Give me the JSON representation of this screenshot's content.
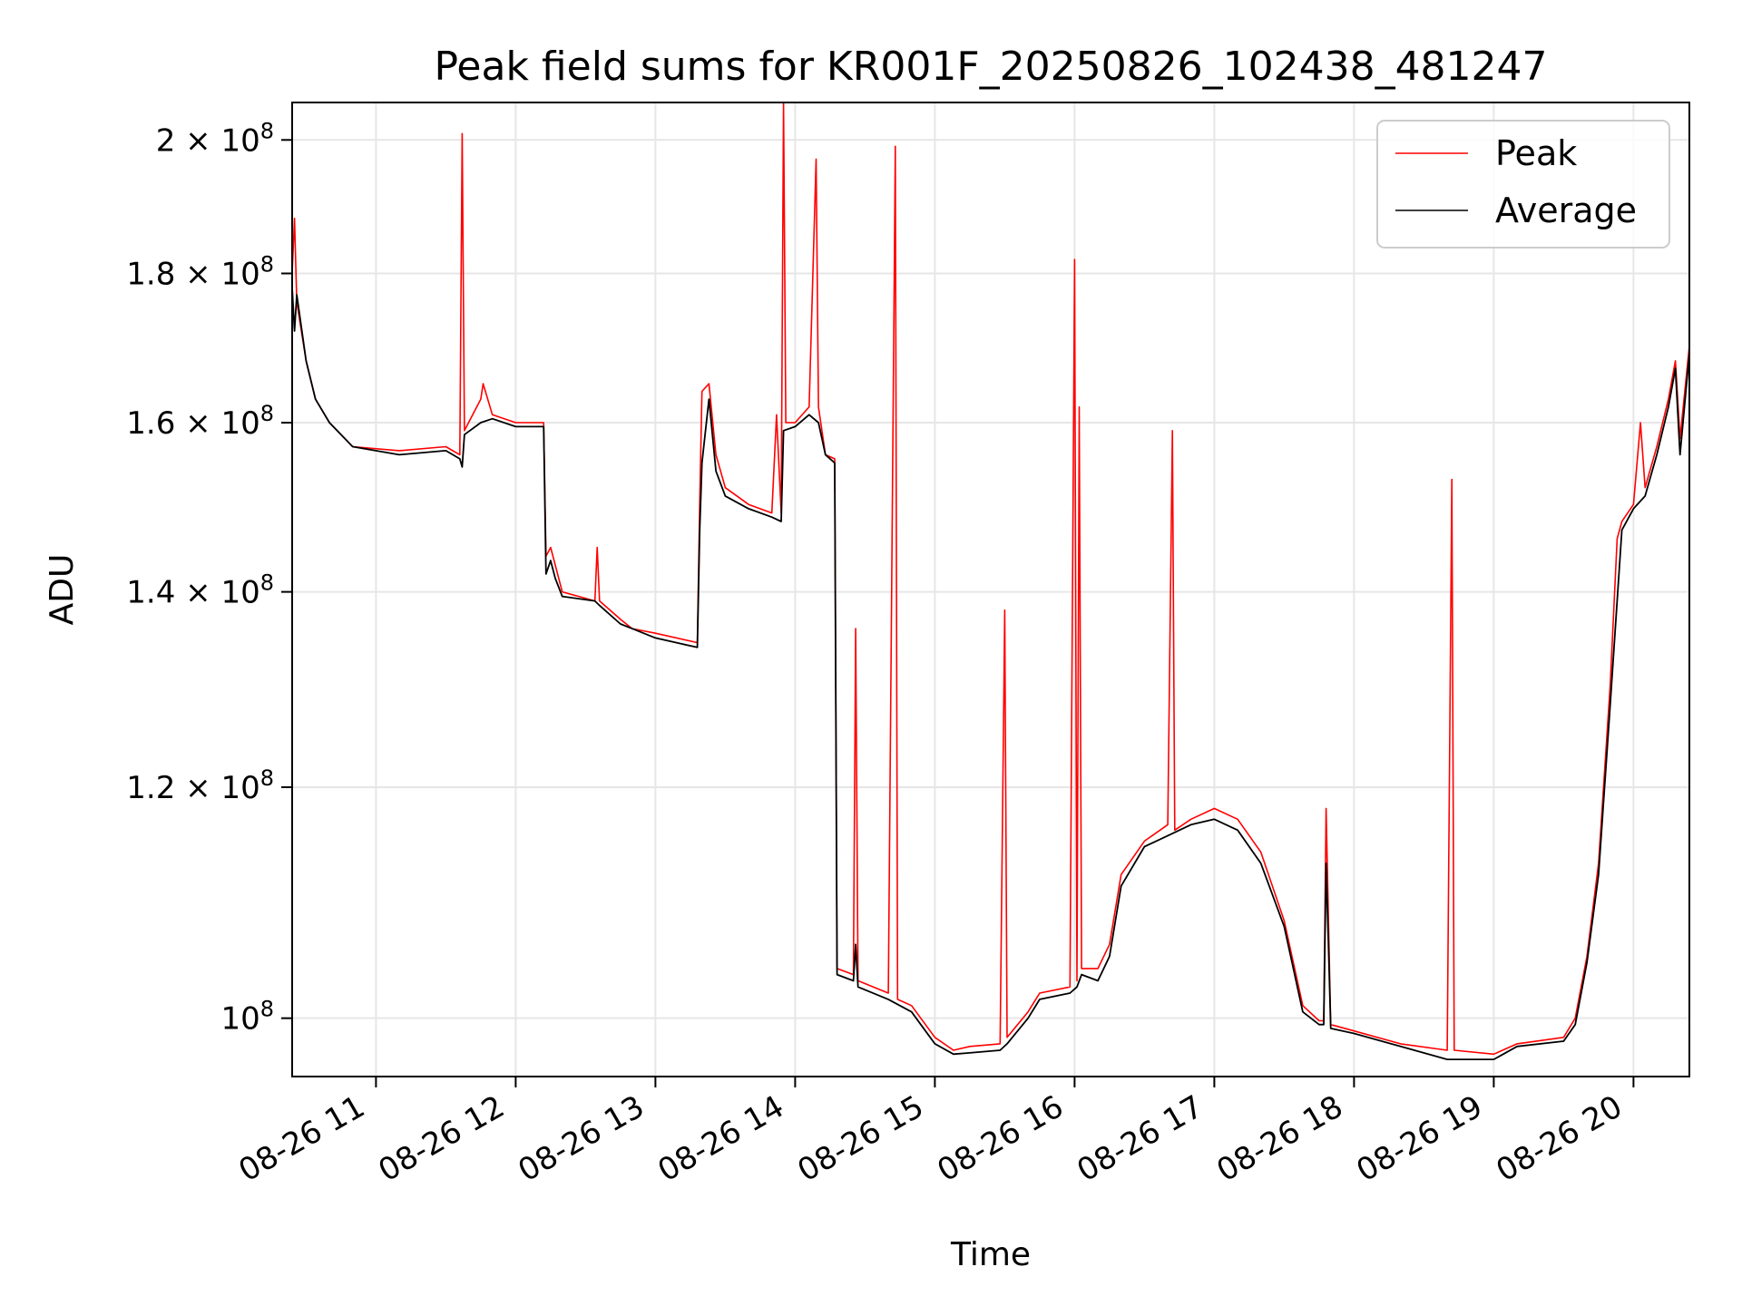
{
  "chart_data": {
    "type": "line",
    "title": "Peak field sums for KR001F_20250826_102438_481247",
    "xlabel": "Time",
    "ylabel": "ADU",
    "yscale": "log",
    "ylim": [
      95500000,
      206000000
    ],
    "xlim": [
      "2025-08-26 10:24",
      "2025-08-26 20:24"
    ],
    "grid": true,
    "legend": "top-right",
    "xticks": [
      {
        "t": "2025-08-26 11:00",
        "label": "08-26 11"
      },
      {
        "t": "2025-08-26 12:00",
        "label": "08-26 12"
      },
      {
        "t": "2025-08-26 13:00",
        "label": "08-26 13"
      },
      {
        "t": "2025-08-26 14:00",
        "label": "08-26 14"
      },
      {
        "t": "2025-08-26 15:00",
        "label": "08-26 15"
      },
      {
        "t": "2025-08-26 16:00",
        "label": "08-26 16"
      },
      {
        "t": "2025-08-26 17:00",
        "label": "08-26 17"
      },
      {
        "t": "2025-08-26 18:00",
        "label": "08-26 18"
      },
      {
        "t": "2025-08-26 19:00",
        "label": "08-26 19"
      },
      {
        "t": "2025-08-26 20:00",
        "label": "08-26 20"
      }
    ],
    "yticks": [
      {
        "v": 100000000,
        "base": "10",
        "exp": "8"
      },
      {
        "v": 120000000,
        "base": "1.2 × 10",
        "exp": "8"
      },
      {
        "v": 140000000,
        "base": "1.4 × 10",
        "exp": "8"
      },
      {
        "v": 160000000,
        "base": "1.6 × 10",
        "exp": "8"
      },
      {
        "v": 180000000,
        "base": "1.8 × 10",
        "exp": "8"
      },
      {
        "v": 200000000,
        "base": "2 × 10",
        "exp": "8"
      }
    ],
    "series": [
      {
        "name": "Peak",
        "color": "#ff0000",
        "points": [
          [
            "2025-08-26 10:24",
            180000000
          ],
          [
            "2025-08-26 10:25",
            188000000
          ],
          [
            "2025-08-26 10:26",
            176000000
          ],
          [
            "2025-08-26 10:30",
            168000000
          ],
          [
            "2025-08-26 10:34",
            163000000
          ],
          [
            "2025-08-26 10:40",
            160000000
          ],
          [
            "2025-08-26 10:50",
            157000000
          ],
          [
            "2025-08-26 11:10",
            156500000
          ],
          [
            "2025-08-26 11:30",
            157000000
          ],
          [
            "2025-08-26 11:36",
            156000000
          ],
          [
            "2025-08-26 11:37",
            201000000
          ],
          [
            "2025-08-26 11:38",
            159000000
          ],
          [
            "2025-08-26 11:45",
            163000000
          ],
          [
            "2025-08-26 11:46",
            165000000
          ],
          [
            "2025-08-26 11:50",
            161000000
          ],
          [
            "2025-08-26 12:00",
            160000000
          ],
          [
            "2025-08-26 12:12",
            160000000
          ],
          [
            "2025-08-26 12:13",
            144000000
          ],
          [
            "2025-08-26 12:15",
            145000000
          ],
          [
            "2025-08-26 12:17",
            143000000
          ],
          [
            "2025-08-26 12:20",
            140000000
          ],
          [
            "2025-08-26 12:34",
            139000000
          ],
          [
            "2025-08-26 12:35",
            145000000
          ],
          [
            "2025-08-26 12:36",
            139000000
          ],
          [
            "2025-08-26 12:45",
            137000000
          ],
          [
            "2025-08-26 12:50",
            136000000
          ],
          [
            "2025-08-26 13:00",
            135500000
          ],
          [
            "2025-08-26 13:18",
            134500000
          ],
          [
            "2025-08-26 13:19",
            150000000
          ],
          [
            "2025-08-26 13:20",
            164000000
          ],
          [
            "2025-08-26 13:23",
            165000000
          ],
          [
            "2025-08-26 13:26",
            156000000
          ],
          [
            "2025-08-26 13:30",
            152000000
          ],
          [
            "2025-08-26 13:40",
            150000000
          ],
          [
            "2025-08-26 13:50",
            149000000
          ],
          [
            "2025-08-26 13:52",
            161000000
          ],
          [
            "2025-08-26 13:54",
            149000000
          ],
          [
            "2025-08-26 13:55",
            206000000
          ],
          [
            "2025-08-26 13:56",
            160000000
          ],
          [
            "2025-08-26 14:00",
            160000000
          ],
          [
            "2025-08-26 14:06",
            162000000
          ],
          [
            "2025-08-26 14:09",
            197000000
          ],
          [
            "2025-08-26 14:10",
            162000000
          ],
          [
            "2025-08-26 14:13",
            156000000
          ],
          [
            "2025-08-26 14:17",
            155500000
          ],
          [
            "2025-08-26 14:18",
            104000000
          ],
          [
            "2025-08-26 14:25",
            103500000
          ],
          [
            "2025-08-26 14:26",
            136000000
          ],
          [
            "2025-08-26 14:27",
            103000000
          ],
          [
            "2025-08-26 14:40",
            102000000
          ],
          [
            "2025-08-26 14:43",
            199000000
          ],
          [
            "2025-08-26 14:44",
            101500000
          ],
          [
            "2025-08-26 14:50",
            101000000
          ],
          [
            "2025-08-26 15:00",
            98500000
          ],
          [
            "2025-08-26 15:08",
            97500000
          ],
          [
            "2025-08-26 15:15",
            97800000
          ],
          [
            "2025-08-26 15:28",
            98000000
          ],
          [
            "2025-08-26 15:30",
            138000000
          ],
          [
            "2025-08-26 15:31",
            98500000
          ],
          [
            "2025-08-26 15:40",
            100500000
          ],
          [
            "2025-08-26 15:45",
            102000000
          ],
          [
            "2025-08-26 15:58",
            102500000
          ],
          [
            "2025-08-26 16:00",
            182000000
          ],
          [
            "2025-08-26 16:01",
            103000000
          ],
          [
            "2025-08-26 16:02",
            162000000
          ],
          [
            "2025-08-26 16:03",
            104000000
          ],
          [
            "2025-08-26 16:10",
            104000000
          ],
          [
            "2025-08-26 16:15",
            106000000
          ],
          [
            "2025-08-26 16:20",
            112000000
          ],
          [
            "2025-08-26 16:30",
            115000000
          ],
          [
            "2025-08-26 16:40",
            116500000
          ],
          [
            "2025-08-26 16:42",
            159000000
          ],
          [
            "2025-08-26 16:43",
            116000000
          ],
          [
            "2025-08-26 16:50",
            117000000
          ],
          [
            "2025-08-26 17:00",
            118000000
          ],
          [
            "2025-08-26 17:10",
            117000000
          ],
          [
            "2025-08-26 17:20",
            114000000
          ],
          [
            "2025-08-26 17:30",
            108000000
          ],
          [
            "2025-08-26 17:38",
            101000000
          ],
          [
            "2025-08-26 17:45",
            99800000
          ],
          [
            "2025-08-26 17:47",
            99800000
          ],
          [
            "2025-08-26 17:48",
            118000000
          ],
          [
            "2025-08-26 17:49",
            108000000
          ],
          [
            "2025-08-26 17:50",
            99500000
          ],
          [
            "2025-08-26 18:00",
            99000000
          ],
          [
            "2025-08-26 18:20",
            98000000
          ],
          [
            "2025-08-26 18:40",
            97500000
          ],
          [
            "2025-08-26 18:42",
            153000000
          ],
          [
            "2025-08-26 18:43",
            97500000
          ],
          [
            "2025-08-26 19:00",
            97200000
          ],
          [
            "2025-08-26 19:10",
            98000000
          ],
          [
            "2025-08-26 19:30",
            98500000
          ],
          [
            "2025-08-26 19:35",
            100000000
          ],
          [
            "2025-08-26 19:40",
            105000000
          ],
          [
            "2025-08-26 19:45",
            113000000
          ],
          [
            "2025-08-26 19:50",
            130000000
          ],
          [
            "2025-08-26 19:53",
            146000000
          ],
          [
            "2025-08-26 19:55",
            148000000
          ],
          [
            "2025-08-26 20:00",
            150000000
          ],
          [
            "2025-08-26 20:03",
            160000000
          ],
          [
            "2025-08-26 20:05",
            152000000
          ],
          [
            "2025-08-26 20:10",
            157000000
          ],
          [
            "2025-08-26 20:15",
            163000000
          ],
          [
            "2025-08-26 20:18",
            168000000
          ],
          [
            "2025-08-26 20:20",
            158000000
          ],
          [
            "2025-08-26 20:24",
            170000000
          ]
        ]
      },
      {
        "name": "Average",
        "color": "#000000",
        "points": [
          [
            "2025-08-26 10:24",
            178000000
          ],
          [
            "2025-08-26 10:25",
            172000000
          ],
          [
            "2025-08-26 10:26",
            177000000
          ],
          [
            "2025-08-26 10:30",
            168000000
          ],
          [
            "2025-08-26 10:34",
            163000000
          ],
          [
            "2025-08-26 10:40",
            160000000
          ],
          [
            "2025-08-26 10:50",
            157000000
          ],
          [
            "2025-08-26 11:10",
            156000000
          ],
          [
            "2025-08-26 11:30",
            156500000
          ],
          [
            "2025-08-26 11:36",
            155500000
          ],
          [
            "2025-08-26 11:37",
            154500000
          ],
          [
            "2025-08-26 11:38",
            158500000
          ],
          [
            "2025-08-26 11:45",
            160000000
          ],
          [
            "2025-08-26 11:50",
            160500000
          ],
          [
            "2025-08-26 12:00",
            159500000
          ],
          [
            "2025-08-26 12:12",
            159500000
          ],
          [
            "2025-08-26 12:13",
            142000000
          ],
          [
            "2025-08-26 12:15",
            143500000
          ],
          [
            "2025-08-26 12:17",
            141500000
          ],
          [
            "2025-08-26 12:20",
            139500000
          ],
          [
            "2025-08-26 12:34",
            139000000
          ],
          [
            "2025-08-26 12:36",
            138500000
          ],
          [
            "2025-08-26 12:45",
            136500000
          ],
          [
            "2025-08-26 12:50",
            136000000
          ],
          [
            "2025-08-26 13:00",
            135000000
          ],
          [
            "2025-08-26 13:18",
            134000000
          ],
          [
            "2025-08-26 13:19",
            147000000
          ],
          [
            "2025-08-26 13:20",
            155000000
          ],
          [
            "2025-08-26 13:23",
            163000000
          ],
          [
            "2025-08-26 13:26",
            154000000
          ],
          [
            "2025-08-26 13:30",
            151000000
          ],
          [
            "2025-08-26 13:40",
            149500000
          ],
          [
            "2025-08-26 13:50",
            148500000
          ],
          [
            "2025-08-26 13:54",
            148000000
          ],
          [
            "2025-08-26 13:55",
            159000000
          ],
          [
            "2025-08-26 14:00",
            159500000
          ],
          [
            "2025-08-26 14:06",
            161000000
          ],
          [
            "2025-08-26 14:10",
            160000000
          ],
          [
            "2025-08-26 14:13",
            156000000
          ],
          [
            "2025-08-26 14:17",
            155000000
          ],
          [
            "2025-08-26 14:18",
            103500000
          ],
          [
            "2025-08-26 14:25",
            103000000
          ],
          [
            "2025-08-26 14:26",
            106000000
          ],
          [
            "2025-08-26 14:27",
            102500000
          ],
          [
            "2025-08-26 14:40",
            101500000
          ],
          [
            "2025-08-26 14:50",
            100500000
          ],
          [
            "2025-08-26 15:00",
            98000000
          ],
          [
            "2025-08-26 15:08",
            97200000
          ],
          [
            "2025-08-26 15:15",
            97300000
          ],
          [
            "2025-08-26 15:28",
            97500000
          ],
          [
            "2025-08-26 15:31",
            98000000
          ],
          [
            "2025-08-26 15:40",
            100000000
          ],
          [
            "2025-08-26 15:45",
            101500000
          ],
          [
            "2025-08-26 15:58",
            102000000
          ],
          [
            "2025-08-26 16:01",
            102500000
          ],
          [
            "2025-08-26 16:03",
            103500000
          ],
          [
            "2025-08-26 16:10",
            103000000
          ],
          [
            "2025-08-26 16:15",
            105000000
          ],
          [
            "2025-08-26 16:20",
            111000000
          ],
          [
            "2025-08-26 16:30",
            114500000
          ],
          [
            "2025-08-26 16:40",
            115500000
          ],
          [
            "2025-08-26 16:50",
            116500000
          ],
          [
            "2025-08-26 17:00",
            117000000
          ],
          [
            "2025-08-26 17:10",
            116000000
          ],
          [
            "2025-08-26 17:20",
            113000000
          ],
          [
            "2025-08-26 17:30",
            107500000
          ],
          [
            "2025-08-26 17:38",
            100500000
          ],
          [
            "2025-08-26 17:45",
            99500000
          ],
          [
            "2025-08-26 17:47",
            99500000
          ],
          [
            "2025-08-26 17:48",
            113000000
          ],
          [
            "2025-08-26 17:49",
            106000000
          ],
          [
            "2025-08-26 17:50",
            99200000
          ],
          [
            "2025-08-26 18:00",
            98800000
          ],
          [
            "2025-08-26 18:20",
            97800000
          ],
          [
            "2025-08-26 18:40",
            96800000
          ],
          [
            "2025-08-26 19:00",
            96800000
          ],
          [
            "2025-08-26 19:10",
            97800000
          ],
          [
            "2025-08-26 19:30",
            98200000
          ],
          [
            "2025-08-26 19:35",
            99500000
          ],
          [
            "2025-08-26 19:40",
            104500000
          ],
          [
            "2025-08-26 19:45",
            112000000
          ],
          [
            "2025-08-26 19:50",
            128000000
          ],
          [
            "2025-08-26 19:55",
            147000000
          ],
          [
            "2025-08-26 20:00",
            149500000
          ],
          [
            "2025-08-26 20:05",
            151000000
          ],
          [
            "2025-08-26 20:10",
            156000000
          ],
          [
            "2025-08-26 20:15",
            162000000
          ],
          [
            "2025-08-26 20:18",
            167000000
          ],
          [
            "2025-08-26 20:20",
            156000000
          ],
          [
            "2025-08-26 20:24",
            169000000
          ]
        ]
      }
    ]
  }
}
